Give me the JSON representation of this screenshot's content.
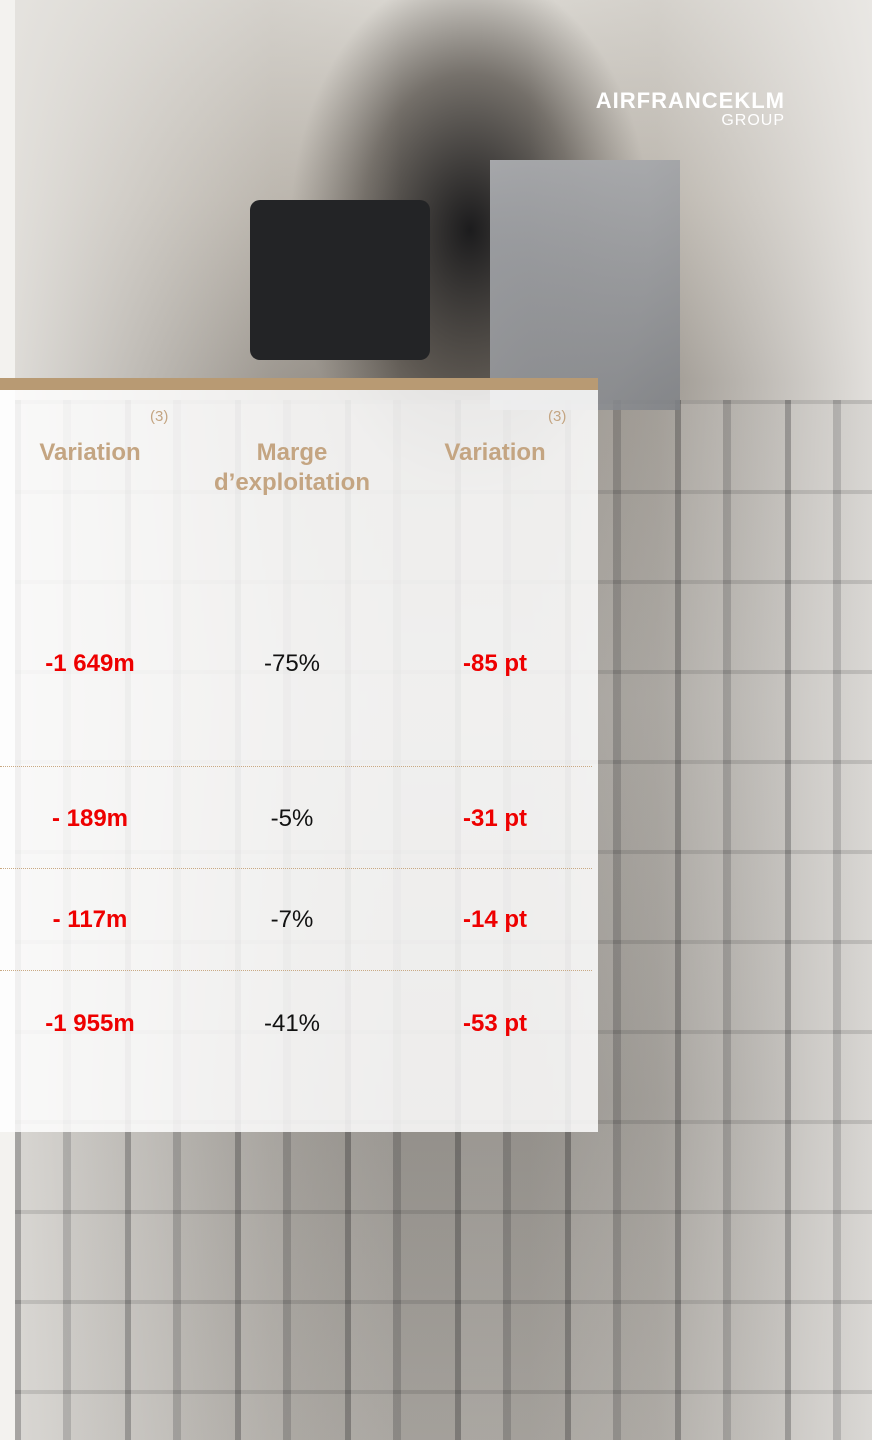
{
  "logo": {
    "name": "AIRFRANCEKLM",
    "group": "GROUP"
  },
  "table": {
    "headers": [
      {
        "label": "Variation",
        "note": "(3)"
      },
      {
        "label": "Marge d’exploitation"
      },
      {
        "label": "Variation",
        "note": "(3)"
      }
    ],
    "rows": [
      [
        "-1 649m",
        "-75%",
        "-85 pt"
      ],
      [
        "- 189m",
        "-5%",
        "-31 pt"
      ],
      [
        "- 117m",
        "-7%",
        "-14 pt"
      ],
      [
        "-1 955m",
        "-41%",
        "-53 pt"
      ]
    ]
  }
}
